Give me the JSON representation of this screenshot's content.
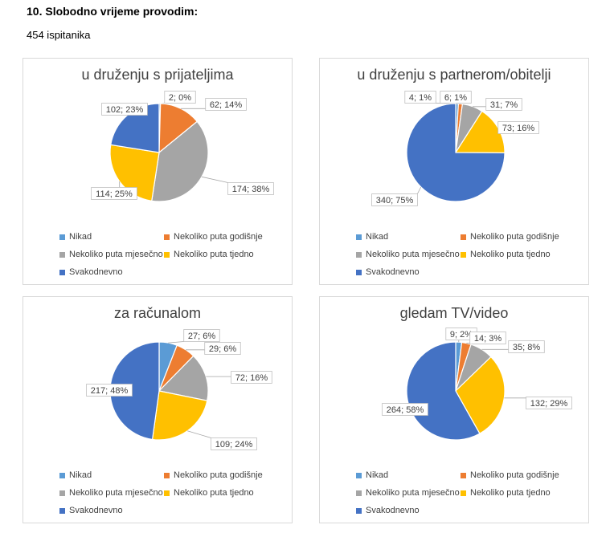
{
  "heading": "10. Slobodno vrijeme provodim:",
  "respondents": "454 ispitanika",
  "legend": [
    {
      "label": "Nikad",
      "color": "#5B9BD5"
    },
    {
      "label": "Nekoliko puta godišnje",
      "color": "#ED7D31"
    },
    {
      "label": "Nekoliko puta mjesečno",
      "color": "#A5A5A5"
    },
    {
      "label": "Nekoliko puta tjedno",
      "color": "#FFC000"
    },
    {
      "label": "Svakodnevno",
      "color": "#4472C4"
    }
  ],
  "chart_data": [
    {
      "type": "pie",
      "title": "u druženju s prijateljima",
      "categories": [
        "Nikad",
        "Nekoliko puta godišnje",
        "Nekoliko puta mjesečno",
        "Nekoliko puta tjedno",
        "Svakodnevno"
      ],
      "values": [
        2,
        62,
        174,
        114,
        102
      ],
      "labels": [
        "2; 0%",
        "62; 14%",
        "174; 38%",
        "114; 25%",
        "102; 23%"
      ]
    },
    {
      "type": "pie",
      "title": "u druženju s partnerom/obitelji",
      "categories": [
        "Nikad",
        "Nekoliko puta godišnje",
        "Nekoliko puta mjesečno",
        "Nekoliko puta tjedno",
        "Svakodnevno"
      ],
      "values": [
        4,
        6,
        31,
        73,
        340
      ],
      "labels": [
        "4; 1%",
        "6; 1%",
        "31; 7%",
        "73; 16%",
        "340; 75%"
      ]
    },
    {
      "type": "pie",
      "title": "za računalom",
      "categories": [
        "Nikad",
        "Nekoliko puta godišnje",
        "Nekoliko puta mjesečno",
        "Nekoliko puta tjedno",
        "Svakodnevno"
      ],
      "values": [
        27,
        29,
        72,
        109,
        217
      ],
      "labels": [
        "27; 6%",
        "29; 6%",
        "72; 16%",
        "109; 24%",
        "217; 48%"
      ]
    },
    {
      "type": "pie",
      "title": "gledam TV/video",
      "categories": [
        "Nikad",
        "Nekoliko puta godišnje",
        "Nekoliko puta mjesečno",
        "Nekoliko puta tjedno",
        "Svakodnevno"
      ],
      "values": [
        9,
        14,
        35,
        132,
        264
      ],
      "labels": [
        "9; 2%",
        "14; 3%",
        "35; 8%",
        "132; 29%",
        "264; 58%"
      ]
    }
  ]
}
